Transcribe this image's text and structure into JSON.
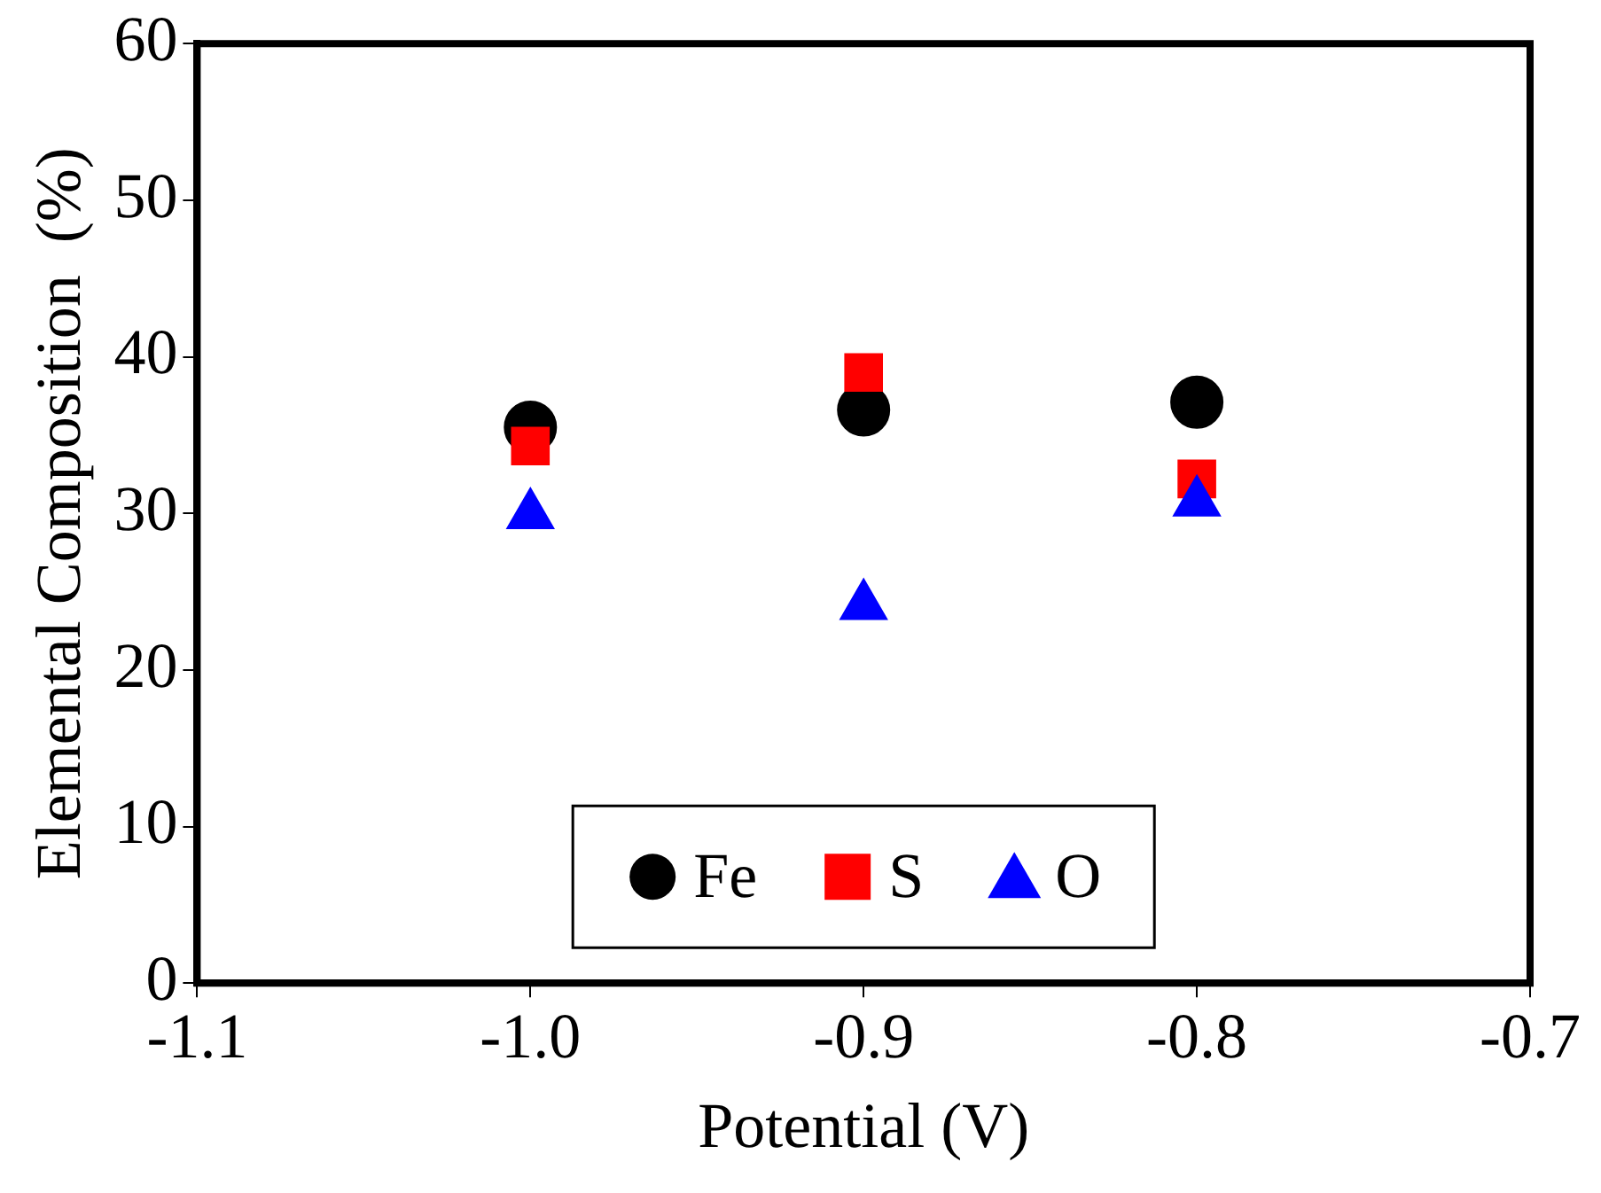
{
  "chart_data": {
    "type": "scatter",
    "xlabel": "Potential (V)",
    "ylabel": "Elemental Composition  (%)",
    "x": [
      -1.0,
      -0.9,
      -0.8
    ],
    "series": [
      {
        "name": "Fe",
        "color": "#000000",
        "marker": "circle",
        "values": [
          35.5,
          36.6,
          37.1
        ]
      },
      {
        "name": "S",
        "color": "#ff0000",
        "marker": "square",
        "values": [
          34.3,
          39.0,
          32.2
        ]
      },
      {
        "name": "O",
        "color": "#0000ff",
        "marker": "triangle",
        "values": [
          29.9,
          24.1,
          30.7
        ]
      }
    ],
    "xlim": [
      -1.1,
      -0.7
    ],
    "xticks": [
      {
        "value": -1.1,
        "label": "-1.1"
      },
      {
        "value": -1.0,
        "label": "-1.0"
      },
      {
        "value": -0.9,
        "label": "-0.9"
      },
      {
        "value": -0.8,
        "label": "-0.8"
      },
      {
        "value": -0.7,
        "label": "-0.7"
      }
    ],
    "ylim": [
      0,
      60
    ],
    "yticks": [
      0,
      10,
      20,
      30,
      40,
      50,
      60
    ],
    "grid": false,
    "legend": "bottom"
  }
}
